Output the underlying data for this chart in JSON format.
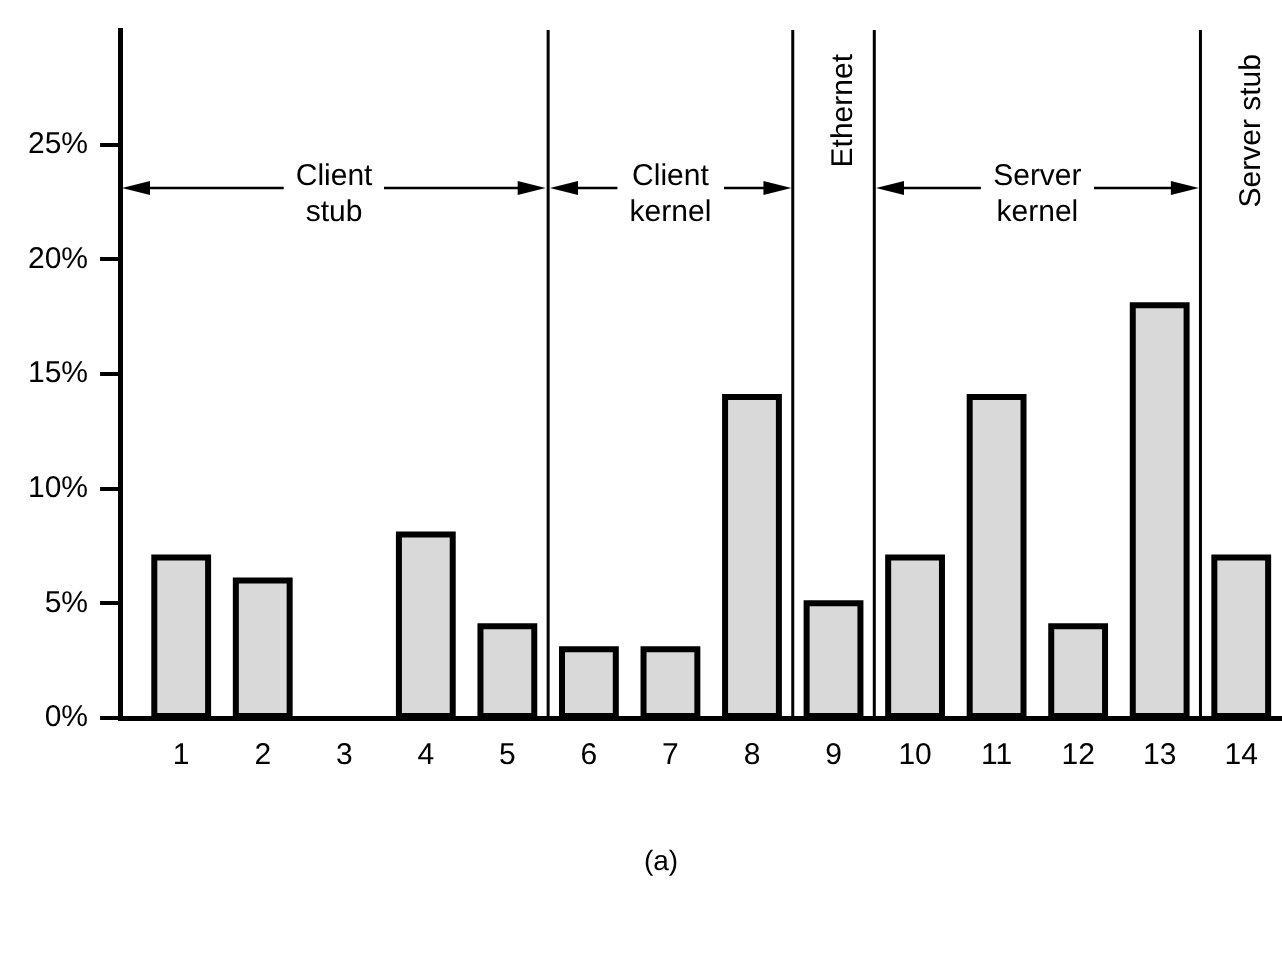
{
  "chart_data": {
    "type": "bar",
    "x": [
      1,
      2,
      3,
      4,
      5,
      6,
      7,
      8,
      9,
      10,
      11,
      12,
      13,
      14
    ],
    "values": [
      7,
      6,
      0,
      8,
      4,
      3,
      3,
      14,
      5,
      7,
      14,
      4,
      18,
      7
    ],
    "color": "#d9d9d9",
    "xlim": [
      0.25,
      14.5
    ],
    "xticks": [
      1,
      2,
      3,
      4,
      5,
      6,
      7,
      8,
      9,
      10,
      11,
      12,
      13,
      14
    ],
    "ylim": [
      0,
      30
    ],
    "yticks": [
      {
        "value": 0,
        "label": "0%"
      },
      {
        "value": 5,
        "label": "5%"
      },
      {
        "value": 10,
        "label": "10%"
      },
      {
        "value": 15,
        "label": "15%"
      },
      {
        "value": 20,
        "label": "20%"
      },
      {
        "value": 25,
        "label": "25%"
      }
    ],
    "ref_lines": [
      {
        "axis": "x",
        "value": 5.5
      },
      {
        "axis": "x",
        "value": 8.5
      },
      {
        "axis": "x",
        "value": 9.5
      },
      {
        "axis": "x",
        "value": 13.5
      }
    ],
    "annotations": [
      "Client stub",
      "Client kernel",
      "Ethernet",
      "Server kernel",
      "Server stub",
      "(a)"
    ],
    "grid": false,
    "legend": false
  }
}
